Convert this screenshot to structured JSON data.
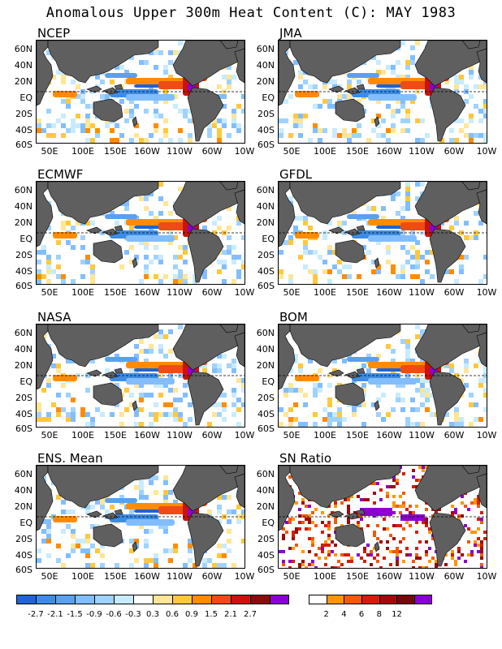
{
  "title": "Anomalous Upper 300m Heat Content (C): MAY 1983",
  "latitude_labels": [
    "60N",
    "40N",
    "20N",
    "EQ",
    "20S",
    "40S",
    "60S"
  ],
  "longitude_labels": [
    "50E",
    "100E",
    "150E",
    "160W",
    "110W",
    "60W",
    "10W"
  ],
  "panels": [
    {
      "title": "NCEP",
      "variant": "anomaly"
    },
    {
      "title": "JMA",
      "variant": "anomaly"
    },
    {
      "title": "ECMWF",
      "variant": "anomaly"
    },
    {
      "title": "GFDL",
      "variant": "anomaly"
    },
    {
      "title": "NASA",
      "variant": "anomaly"
    },
    {
      "title": "BOM",
      "variant": "anomaly"
    },
    {
      "title": "ENS. Mean",
      "variant": "anomaly"
    },
    {
      "title": "SN Ratio",
      "variant": "snr"
    }
  ],
  "anomaly_colorbar": {
    "labels": [
      "-2.7",
      "-2.1",
      "-1.5",
      "-0.9",
      "-0.6",
      "-0.3",
      "0.3",
      "0.6",
      "0.9",
      "1.5",
      "2.1",
      "2.7"
    ],
    "colors": [
      "#1e64d2",
      "#3c8ce6",
      "#5aa0f0",
      "#82beff",
      "#a0d2ff",
      "#c8ebff",
      "#ffffff",
      "#ffe696",
      "#ffc83c",
      "#ff8c00",
      "#f04b14",
      "#c8140a",
      "#8c0a0a",
      "#8c00d2"
    ]
  },
  "snr_colorbar": {
    "labels": [
      "2",
      "4",
      "6",
      "8",
      "12"
    ],
    "colors": [
      "#ffffff",
      "#ff9600",
      "#f05a0a",
      "#d21e0a",
      "#a00a0a",
      "#7a0505",
      "#8c00d2"
    ]
  },
  "colors": {
    "land": "#5f5f5f",
    "ocean": "#ffffff"
  }
}
